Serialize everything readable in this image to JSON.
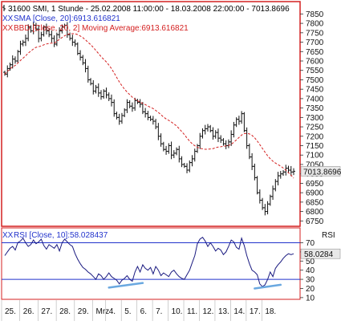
{
  "chart_data": [
    {
      "type": "ohlc",
      "title": "",
      "legend": [
        {
          "text": "31600  SMI, 1 Stunde - 25.02.2008 11:00:00 - 18.03.2008 22:00:00 - 7013.8696",
          "color": "#000000",
          "marker": "lines"
        },
        {
          "text": "SMA [Close, 20]:6913.616821",
          "color": "#2233cc",
          "marker": "XX"
        },
        {
          "text": "BBD [Close, 20, 2] Moving Average:6913.616821",
          "color": "#d42020",
          "marker": "XX"
        }
      ],
      "ylim": [
        6730,
        7890
      ],
      "yticks": [
        6750,
        6800,
        6850,
        6900,
        6950,
        7000,
        7050,
        7100,
        7150,
        7200,
        7250,
        7300,
        7350,
        7400,
        7450,
        7500,
        7550,
        7600,
        7650,
        7700,
        7750,
        7800,
        7850
      ],
      "last_price": "7013.8696",
      "last_value": 7013.87,
      "closes": [
        7530,
        7560,
        7580,
        7610,
        7600,
        7650,
        7690,
        7700,
        7720,
        7780,
        7760,
        7790,
        7770,
        7720,
        7740,
        7780,
        7760,
        7740,
        7720,
        7690,
        7740,
        7760,
        7780,
        7790,
        7740,
        7720,
        7700,
        7690,
        7640,
        7620,
        7590,
        7560,
        7500,
        7480,
        7440,
        7460,
        7430,
        7410,
        7440,
        7420,
        7400,
        7380,
        7320,
        7300,
        7280,
        7310,
        7340,
        7380,
        7360,
        7350,
        7390,
        7380,
        7370,
        7330,
        7320,
        7300,
        7290,
        7280,
        7250,
        7200,
        7160,
        7130,
        7120,
        7150,
        7100,
        7110,
        7130,
        7080,
        7050,
        7040,
        7020,
        7060,
        7080,
        7120,
        7150,
        7200,
        7230,
        7240,
        7250,
        7230,
        7200,
        7220,
        7190,
        7180,
        7160,
        7150,
        7170,
        7210,
        7260,
        7290,
        7280,
        7320,
        7230,
        7150,
        7090,
        7040,
        6980,
        6900,
        6860,
        6820,
        6800,
        6840,
        6880,
        6920,
        6960,
        6990,
        7000,
        7010,
        7030,
        7020,
        7010,
        7014
      ],
      "ma_color": "#d42020",
      "ma_period": 20
    },
    {
      "type": "line",
      "legend": {
        "text": "RSI [Close, 10]:58.028437",
        "color": "#2233cc",
        "marker": "XX"
      },
      "panel_label": "RSI",
      "ylim": [
        9,
        81
      ],
      "yticks": [
        10,
        20,
        30,
        40,
        50,
        60,
        70
      ],
      "hlines": [
        30,
        70
      ],
      "last_value_label": "58.0284",
      "last_value": 58.03,
      "values": [
        56,
        60,
        64,
        66,
        62,
        70,
        72,
        75,
        70,
        66,
        68,
        73,
        69,
        71,
        74,
        67,
        63,
        68,
        66,
        64,
        68,
        61,
        70,
        74,
        71,
        68,
        66,
        58,
        52,
        47,
        43,
        41,
        38,
        36,
        33,
        30,
        36,
        34,
        30,
        33,
        37,
        33,
        31,
        29,
        25,
        29,
        31,
        34,
        30,
        28,
        38,
        44,
        38,
        46,
        42,
        40,
        43,
        36,
        44,
        40,
        34,
        37,
        35,
        33,
        38,
        40,
        36,
        33,
        31,
        30,
        35,
        40,
        48,
        56,
        69,
        74,
        76,
        72,
        66,
        70,
        66,
        61,
        64,
        62,
        57,
        60,
        66,
        73,
        71,
        65,
        63,
        75,
        67,
        56,
        47,
        40,
        38,
        35,
        25,
        22,
        24,
        30,
        38,
        33,
        42,
        46,
        49,
        53,
        56,
        58,
        57,
        58
      ],
      "trend_lines": [
        {
          "from": [
            40,
            21
          ],
          "to": [
            53,
            26
          ]
        },
        {
          "from": [
            96,
            20
          ],
          "to": [
            106,
            24
          ]
        }
      ],
      "trend_color": "#6aa8e0"
    }
  ],
  "x_axis": {
    "labels": [
      "25.",
      "26.",
      "27.",
      "28.",
      "29.",
      "Mrz",
      "4.",
      "5.",
      "6.",
      "7.",
      "10.",
      "11.",
      "12.",
      "13.",
      "14.",
      "17.",
      "18."
    ],
    "label_bar_index": [
      0,
      7,
      14,
      21,
      28,
      35,
      40,
      46,
      52,
      58,
      64,
      70,
      76,
      82,
      88,
      94,
      100
    ]
  },
  "colors": {
    "frame": "#d42020",
    "bars": "#111111",
    "rsi_line": "#1a1a80",
    "ref_lines": "#2233cc",
    "price_marker_bg": "#e8e8e8"
  }
}
